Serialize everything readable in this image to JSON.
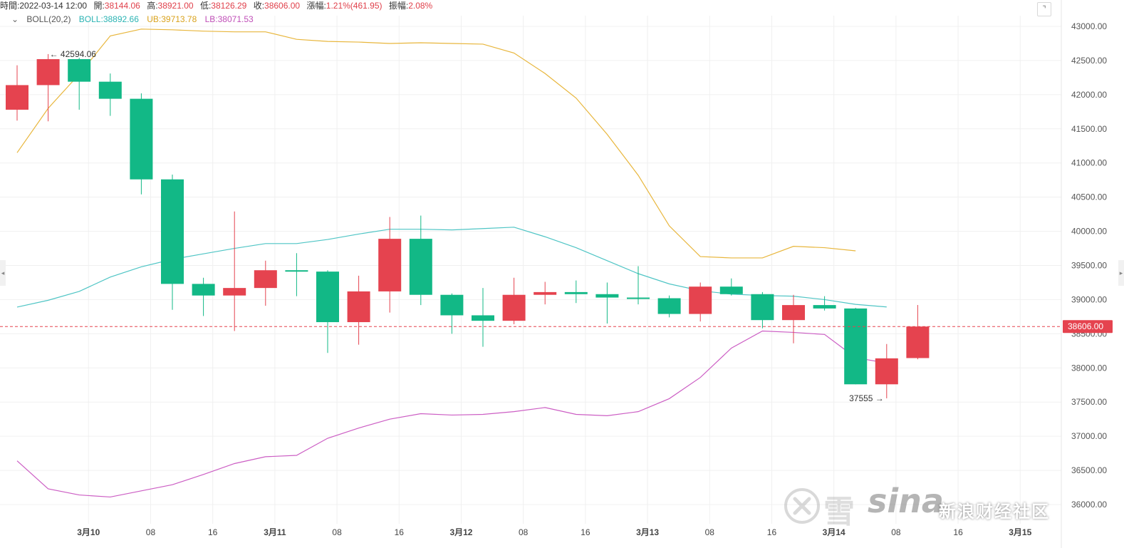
{
  "ohlc": {
    "time_label": "時間:",
    "time": "2022-03-14 12:00",
    "open_label": "開:",
    "open": "38144.06",
    "high_label": "高:",
    "high": "38921.00",
    "low_label": "低:",
    "low": "38126.29",
    "close_label": "收:",
    "close": "38606.00",
    "change_label": "漲幅:",
    "change": "1.21%(461.95)",
    "amplitude_label": "振幅:",
    "amplitude": "2.08%"
  },
  "boll": {
    "toggle_icon": "chevron-down-icon",
    "name": "BOLL(20,2)",
    "mid": "BOLL:38892.66",
    "ub": "UB:39713.78",
    "lb": "LB:38071.53"
  },
  "colors": {
    "up": "#e5434f",
    "down": "#12b886",
    "mid": "#4fc5c5",
    "ub": "#e8b63c",
    "lb": "#cc5ec4",
    "price_line": "#e5434f",
    "grid": "#f0f0f0"
  },
  "watermark": {
    "text_main": "雪",
    "text_sina": "sina",
    "text_sub": "新浪财经社区"
  },
  "chart_data": {
    "type": "candlestick",
    "ylim": [
      35900,
      43200
    ],
    "y_ticks": [
      "43000.00",
      "42500.00",
      "42000.00",
      "41500.00",
      "41000.00",
      "40500.00",
      "40000.00",
      "39500.00",
      "39000.00",
      "38500.00",
      "38000.00",
      "37500.00",
      "37000.00",
      "36500.00",
      "36000.00"
    ],
    "y_tick_values": [
      43000,
      42500,
      42000,
      41500,
      41000,
      40500,
      40000,
      39500,
      39000,
      38500,
      38000,
      37500,
      37000,
      36500,
      36000
    ],
    "x_labels": [
      {
        "index": 2.3,
        "text": "3月10"
      },
      {
        "index": 4.3,
        "text": "08"
      },
      {
        "index": 6.3,
        "text": "16"
      },
      {
        "index": 8.3,
        "text": "3月11"
      },
      {
        "index": 10.3,
        "text": "08"
      },
      {
        "index": 12.3,
        "text": "16"
      },
      {
        "index": 14.3,
        "text": "3月12"
      },
      {
        "index": 16.3,
        "text": "08"
      },
      {
        "index": 18.3,
        "text": "16"
      },
      {
        "index": 20.3,
        "text": "3月13"
      },
      {
        "index": 22.3,
        "text": "08"
      },
      {
        "index": 24.3,
        "text": "16"
      },
      {
        "index": 26.3,
        "text": "3月14"
      },
      {
        "index": 28.3,
        "text": "08"
      },
      {
        "index": 30.3,
        "text": "16"
      },
      {
        "index": 32.3,
        "text": "3月15"
      }
    ],
    "candles": [
      {
        "o": 41780,
        "h": 42430,
        "l": 41620,
        "c": 42140
      },
      {
        "o": 42140,
        "h": 42594.06,
        "l": 41610,
        "c": 42520
      },
      {
        "o": 42520,
        "h": 42540,
        "l": 41780,
        "c": 42190
      },
      {
        "o": 42190,
        "h": 42310,
        "l": 41690,
        "c": 41940
      },
      {
        "o": 41940,
        "h": 42020,
        "l": 40540,
        "c": 40760
      },
      {
        "o": 40760,
        "h": 40830,
        "l": 38850,
        "c": 39230
      },
      {
        "o": 39230,
        "h": 39320,
        "l": 38760,
        "c": 39060
      },
      {
        "o": 39060,
        "h": 40290,
        "l": 38540,
        "c": 39170
      },
      {
        "o": 39170,
        "h": 39570,
        "l": 38910,
        "c": 39430
      },
      {
        "o": 39430,
        "h": 39680,
        "l": 39050,
        "c": 39410
      },
      {
        "o": 39410,
        "h": 39430,
        "l": 38220,
        "c": 38670
      },
      {
        "o": 38670,
        "h": 39350,
        "l": 38340,
        "c": 39120
      },
      {
        "o": 39120,
        "h": 40210,
        "l": 38810,
        "c": 39890
      },
      {
        "o": 39890,
        "h": 40230,
        "l": 38920,
        "c": 39070
      },
      {
        "o": 39070,
        "h": 39090,
        "l": 38500,
        "c": 38770
      },
      {
        "o": 38770,
        "h": 39170,
        "l": 38310,
        "c": 38690
      },
      {
        "o": 38690,
        "h": 39320,
        "l": 38640,
        "c": 39070
      },
      {
        "o": 39070,
        "h": 39260,
        "l": 38930,
        "c": 39110
      },
      {
        "o": 39110,
        "h": 39280,
        "l": 38950,
        "c": 39080
      },
      {
        "o": 39080,
        "h": 39250,
        "l": 38650,
        "c": 39030
      },
      {
        "o": 39030,
        "h": 39490,
        "l": 38930,
        "c": 39020
      },
      {
        "o": 39020,
        "h": 39060,
        "l": 38740,
        "c": 38790
      },
      {
        "o": 38790,
        "h": 39250,
        "l": 38680,
        "c": 39190
      },
      {
        "o": 39190,
        "h": 39310,
        "l": 39060,
        "c": 39080
      },
      {
        "o": 39080,
        "h": 39110,
        "l": 38580,
        "c": 38700
      },
      {
        "o": 38700,
        "h": 39070,
        "l": 38360,
        "c": 38920
      },
      {
        "o": 38920,
        "h": 39050,
        "l": 38840,
        "c": 38870
      },
      {
        "o": 38870,
        "h": 38880,
        "l": 37760,
        "c": 37760
      },
      {
        "o": 37760,
        "h": 38350,
        "l": 37555,
        "c": 38140
      },
      {
        "o": 38144.06,
        "h": 38921,
        "l": 38126.29,
        "c": 38606
      }
    ],
    "mid_band": [
      [
        0,
        38890
      ],
      [
        1,
        38990
      ],
      [
        2,
        39120
      ],
      [
        3,
        39330
      ],
      [
        4,
        39480
      ],
      [
        5,
        39590
      ],
      [
        6,
        39670
      ],
      [
        7,
        39750
      ],
      [
        8,
        39820
      ],
      [
        9,
        39820
      ],
      [
        10,
        39880
      ],
      [
        11,
        39960
      ],
      [
        12,
        40030
      ],
      [
        13,
        40030
      ],
      [
        14,
        40020
      ],
      [
        15,
        40040
      ],
      [
        16,
        40060
      ],
      [
        17,
        39920
      ],
      [
        18,
        39760
      ],
      [
        19,
        39570
      ],
      [
        20,
        39380
      ],
      [
        21,
        39230
      ],
      [
        22,
        39130
      ],
      [
        23,
        39080
      ],
      [
        24,
        39060
      ],
      [
        25,
        39050
      ],
      [
        26,
        39000
      ],
      [
        27,
        38930
      ],
      [
        28,
        38892.66
      ]
    ],
    "upper_band": [
      [
        0,
        41150
      ],
      [
        1,
        41800
      ],
      [
        2,
        42300
      ],
      [
        3,
        42860
      ],
      [
        4,
        42960
      ],
      [
        5,
        42950
      ],
      [
        6,
        42930
      ],
      [
        7,
        42920
      ],
      [
        8,
        42920
      ],
      [
        9,
        42810
      ],
      [
        10,
        42780
      ],
      [
        11,
        42770
      ],
      [
        12,
        42750
      ],
      [
        13,
        42760
      ],
      [
        14,
        42750
      ],
      [
        15,
        42740
      ],
      [
        16,
        42610
      ],
      [
        17,
        42310
      ],
      [
        18,
        41950
      ],
      [
        19,
        41420
      ],
      [
        20,
        40820
      ],
      [
        21,
        40080
      ],
      [
        22,
        39630
      ],
      [
        23,
        39610
      ],
      [
        24,
        39610
      ],
      [
        25,
        39780
      ],
      [
        26,
        39760
      ],
      [
        27,
        39713.78
      ]
    ],
    "lower_band": [
      [
        0,
        36640
      ],
      [
        1,
        36230
      ],
      [
        2,
        36140
      ],
      [
        3,
        36110
      ],
      [
        4,
        36200
      ],
      [
        5,
        36290
      ],
      [
        6,
        36440
      ],
      [
        7,
        36600
      ],
      [
        8,
        36700
      ],
      [
        9,
        36720
      ],
      [
        10,
        36970
      ],
      [
        11,
        37120
      ],
      [
        12,
        37250
      ],
      [
        13,
        37330
      ],
      [
        14,
        37310
      ],
      [
        15,
        37320
      ],
      [
        16,
        37360
      ],
      [
        17,
        37420
      ],
      [
        18,
        37320
      ],
      [
        19,
        37300
      ],
      [
        20,
        37360
      ],
      [
        21,
        37550
      ],
      [
        22,
        37860
      ],
      [
        23,
        38290
      ],
      [
        24,
        38540
      ],
      [
        25,
        38520
      ],
      [
        26,
        38490
      ],
      [
        27,
        38150
      ],
      [
        28,
        38071.53
      ]
    ],
    "current_price": {
      "value": 38606,
      "label": "38606.00"
    },
    "max_annotation": {
      "index": 1,
      "value": 42594.06,
      "label": "42594.06",
      "arrow": "←"
    },
    "min_annotation": {
      "index": 28,
      "value": 37555,
      "label": "37555",
      "arrow": "→"
    }
  }
}
